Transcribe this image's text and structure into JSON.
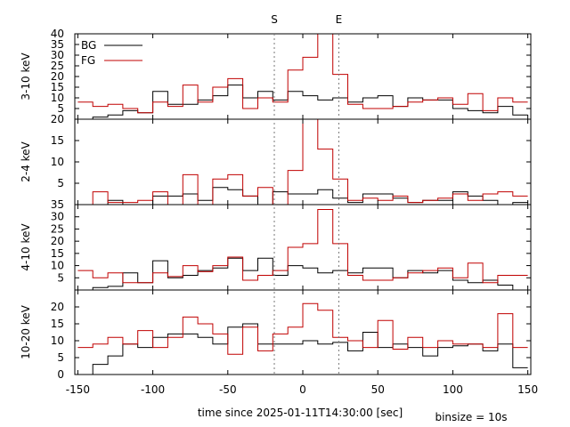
{
  "markers": [
    {
      "label": "S",
      "x": -19
    },
    {
      "label": "E",
      "x": 24
    }
  ],
  "xlabel": "time since 2025-01-11T14:30:00 [sec]",
  "binsize_label": "binsize = 10s",
  "legend": {
    "placement": "top-left",
    "entries": [
      {
        "name": "BG",
        "color": "#000000"
      },
      {
        "name": "FG",
        "color": "#c00000"
      }
    ]
  },
  "xticks": [
    -150,
    -100,
    -50,
    0,
    50,
    100,
    150
  ],
  "chart_data": [
    {
      "type": "line",
      "ylabel": "3-10 keV",
      "xlim": [
        -152,
        152
      ],
      "ylim": [
        0,
        40
      ],
      "yticks": [
        5,
        10,
        15,
        20,
        25,
        30,
        35,
        40
      ],
      "x_edges": [
        -150,
        -140,
        -130,
        -120,
        -110,
        -100,
        -90,
        -80,
        -70,
        -60,
        -50,
        -40,
        -30,
        -20,
        -10,
        0,
        10,
        20,
        30,
        40,
        50,
        60,
        70,
        80,
        90,
        100,
        110,
        120,
        130,
        140,
        150
      ],
      "series": [
        {
          "name": "BG",
          "color": "#000000",
          "values": [
            0,
            1,
            2,
            4,
            3,
            13,
            7,
            7,
            9,
            11,
            16,
            10,
            13,
            9,
            13,
            11,
            9,
            10,
            8,
            10,
            11,
            6,
            10,
            9,
            9,
            5,
            4,
            3,
            6,
            2
          ]
        },
        {
          "name": "FG",
          "color": "#c00000",
          "values": [
            8,
            6,
            7,
            5,
            3,
            8,
            6,
            16,
            8,
            15,
            19,
            5,
            10,
            8,
            23,
            29,
            40,
            21,
            7,
            5,
            5,
            6,
            8,
            9,
            10,
            7,
            12,
            4,
            10,
            8
          ]
        }
      ]
    },
    {
      "type": "line",
      "ylabel": "2-4 keV",
      "xlim": [
        -152,
        152
      ],
      "ylim": [
        0,
        20
      ],
      "yticks": [
        5,
        10,
        15,
        20
      ],
      "x_edges": [
        -150,
        -140,
        -130,
        -120,
        -110,
        -100,
        -90,
        -80,
        -70,
        -60,
        -50,
        -40,
        -30,
        -20,
        -10,
        0,
        10,
        20,
        30,
        40,
        50,
        60,
        70,
        80,
        90,
        100,
        110,
        120,
        130,
        140,
        150
      ],
      "series": [
        {
          "name": "BG",
          "color": "#000000",
          "values": [
            0,
            0,
            1,
            0,
            0,
            2,
            2,
            2.5,
            1,
            4,
            3.5,
            2,
            0,
            3,
            2.5,
            2.5,
            3.5,
            1.5,
            0.5,
            2.5,
            2.5,
            1.5,
            0.5,
            1,
            1,
            3,
            2,
            1,
            0,
            0.5
          ]
        },
        {
          "name": "FG",
          "color": "#c00000",
          "values": [
            0,
            3,
            0.5,
            0.5,
            1,
            3,
            0,
            7,
            0,
            6,
            7,
            2,
            4,
            0,
            8,
            20,
            13,
            6,
            1,
            1.5,
            1,
            2,
            0.5,
            1,
            1.5,
            2.5,
            1,
            2.5,
            3,
            2
          ]
        }
      ]
    },
    {
      "type": "line",
      "ylabel": "4-10 keV",
      "xlim": [
        -152,
        152
      ],
      "ylim": [
        0,
        35
      ],
      "yticks": [
        5,
        10,
        15,
        20,
        25,
        30,
        35
      ],
      "x_edges": [
        -150,
        -140,
        -130,
        -120,
        -110,
        -100,
        -90,
        -80,
        -70,
        -60,
        -50,
        -40,
        -30,
        -20,
        -10,
        0,
        10,
        20,
        30,
        40,
        50,
        60,
        70,
        80,
        90,
        100,
        110,
        120,
        130,
        140,
        150
      ],
      "series": [
        {
          "name": "BG",
          "color": "#000000",
          "values": [
            0,
            1,
            1.5,
            7,
            3,
            12,
            5,
            6,
            8,
            9,
            13,
            8,
            13,
            6,
            10,
            9,
            7,
            8,
            7,
            9,
            9,
            5,
            8,
            7,
            8,
            4,
            3,
            4,
            2,
            0
          ]
        },
        {
          "name": "FG",
          "color": "#c00000",
          "values": [
            8,
            5,
            7,
            3,
            3,
            7,
            5.5,
            10,
            7.5,
            10,
            13.5,
            4,
            6,
            8,
            17.5,
            19,
            33,
            19,
            6,
            4,
            4,
            5,
            7,
            8,
            9,
            5,
            11,
            3,
            6,
            6
          ]
        }
      ]
    },
    {
      "type": "line",
      "ylabel": "10-20 keV",
      "xlim": [
        -152,
        152
      ],
      "ylim": [
        0,
        25
      ],
      "yticks": [
        0,
        5,
        10,
        15,
        20
      ],
      "x_edges": [
        -150,
        -140,
        -130,
        -120,
        -110,
        -100,
        -90,
        -80,
        -70,
        -60,
        -50,
        -40,
        -30,
        -20,
        -10,
        0,
        10,
        20,
        30,
        40,
        50,
        60,
        70,
        80,
        90,
        100,
        110,
        120,
        130,
        140,
        150
      ],
      "series": [
        {
          "name": "BG",
          "color": "#000000",
          "values": [
            0,
            3,
            5.5,
            9,
            8,
            11,
            12,
            12,
            11,
            9,
            14,
            15,
            9,
            9,
            9,
            10,
            9,
            9.5,
            7,
            12.5,
            8,
            9,
            8,
            5.5,
            8,
            8.5,
            9,
            7,
            9,
            2
          ]
        },
        {
          "name": "FG",
          "color": "#c00000",
          "values": [
            8,
            9,
            11,
            9,
            13,
            8,
            11,
            17,
            15,
            12,
            6,
            14,
            7,
            12,
            14,
            21,
            19,
            11,
            10,
            8,
            16,
            7.5,
            11,
            8,
            10,
            9,
            9,
            8,
            18,
            8
          ]
        }
      ]
    }
  ]
}
